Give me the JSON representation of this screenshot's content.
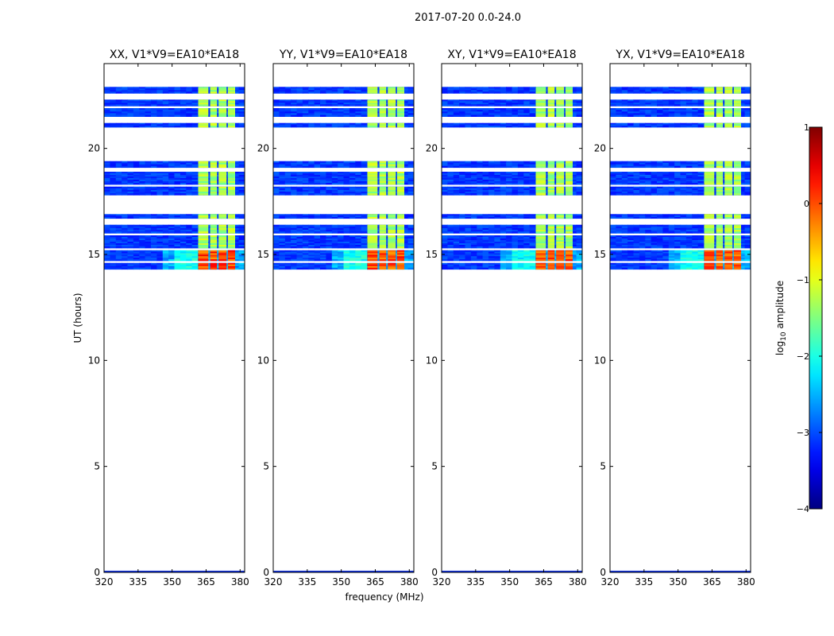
{
  "figure": {
    "suptitle": "2017-07-20 0.0-24.0",
    "xlabel": "frequency (MHz)",
    "ylabel": "UT (hours)",
    "colorbar_label_prefix": "log",
    "colorbar_label_sub": "10",
    "colorbar_label_suffix": " amplitude"
  },
  "chart_data": [
    {
      "type": "heatmap",
      "title": "XX, V1*V9=EA10*EA18",
      "xlabel": "",
      "ylabel": "UT (hours)",
      "xlim": [
        320,
        382
      ],
      "ylim": [
        0,
        24
      ],
      "xticks": [
        320,
        335,
        350,
        365,
        380
      ],
      "yticks": [
        0,
        5,
        10,
        15,
        20
      ],
      "xtick_labels": [
        "320",
        "335",
        "350",
        "365",
        "380"
      ],
      "ytick_labels": [
        "0",
        "5",
        "10",
        "15",
        "20"
      ],
      "intensity": 1.1
    },
    {
      "type": "heatmap",
      "title": "YY, V1*V9=EA10*EA18",
      "xlabel": "frequency (MHz)",
      "ylabel": "",
      "xlim": [
        320,
        382
      ],
      "ylim": [
        0,
        24
      ],
      "xticks": [
        320,
        335,
        350,
        365,
        380
      ],
      "yticks": [
        0,
        5,
        10,
        15,
        20
      ],
      "xtick_labels": [
        "320",
        "335",
        "350",
        "365",
        "380"
      ],
      "ytick_labels": [
        "0",
        "5",
        "10",
        "15",
        "20"
      ],
      "intensity": 1.0
    },
    {
      "type": "heatmap",
      "title": "XY, V1*V9=EA10*EA18",
      "xlabel": "",
      "ylabel": "",
      "xlim": [
        320,
        382
      ],
      "ylim": [
        0,
        24
      ],
      "xticks": [
        320,
        335,
        350,
        365,
        380
      ],
      "yticks": [
        0,
        5,
        10,
        15,
        20
      ],
      "xtick_labels": [
        "320",
        "335",
        "350",
        "365",
        "380"
      ],
      "ytick_labels": [
        "0",
        "5",
        "10",
        "15",
        "20"
      ],
      "intensity": 0.95
    },
    {
      "type": "heatmap",
      "title": "YX, V1*V9=EA10*EA18",
      "xlabel": "",
      "ylabel": "",
      "xlim": [
        320,
        382
      ],
      "ylim": [
        0,
        24
      ],
      "xticks": [
        320,
        335,
        350,
        365,
        380
      ],
      "yticks": [
        0,
        5,
        10,
        15,
        20
      ],
      "xtick_labels": [
        "320",
        "335",
        "350",
        "365",
        "380"
      ],
      "ytick_labels": [
        "0",
        "5",
        "10",
        "15",
        "20"
      ],
      "intensity": 0.9
    }
  ],
  "data_coverage": {
    "ut_bands": [
      [
        22.6,
        22.9
      ],
      [
        22.0,
        22.3
      ],
      [
        21.5,
        21.9
      ],
      [
        21.0,
        21.2
      ],
      [
        19.1,
        19.4
      ],
      [
        18.3,
        18.9
      ],
      [
        17.8,
        18.2
      ],
      [
        16.7,
        16.9
      ],
      [
        16.0,
        16.4
      ],
      [
        15.3,
        15.9
      ],
      [
        14.7,
        15.2
      ],
      [
        14.3,
        14.6
      ]
    ],
    "ut_bright_band": [
      14.3,
      15.2
    ],
    "rfi_channel_ranges_mhz": [
      [
        361.5,
        366.0
      ],
      [
        366.8,
        369.8
      ],
      [
        370.5,
        374.0
      ],
      [
        374.6,
        377.8
      ]
    ]
  },
  "colorbar": {
    "min": -4,
    "max": 1,
    "ticks": [
      -4,
      -3,
      -2,
      -1,
      0,
      1
    ],
    "tick_labels": [
      "−4",
      "−3",
      "−2",
      "−1",
      "0",
      "1"
    ],
    "colormap": "jet",
    "colors": [
      "#00007f",
      "#0000ff",
      "#007fff",
      "#00ffff",
      "#7fff7f",
      "#ffff00",
      "#ff7f00",
      "#ff0000",
      "#7f0000"
    ]
  }
}
